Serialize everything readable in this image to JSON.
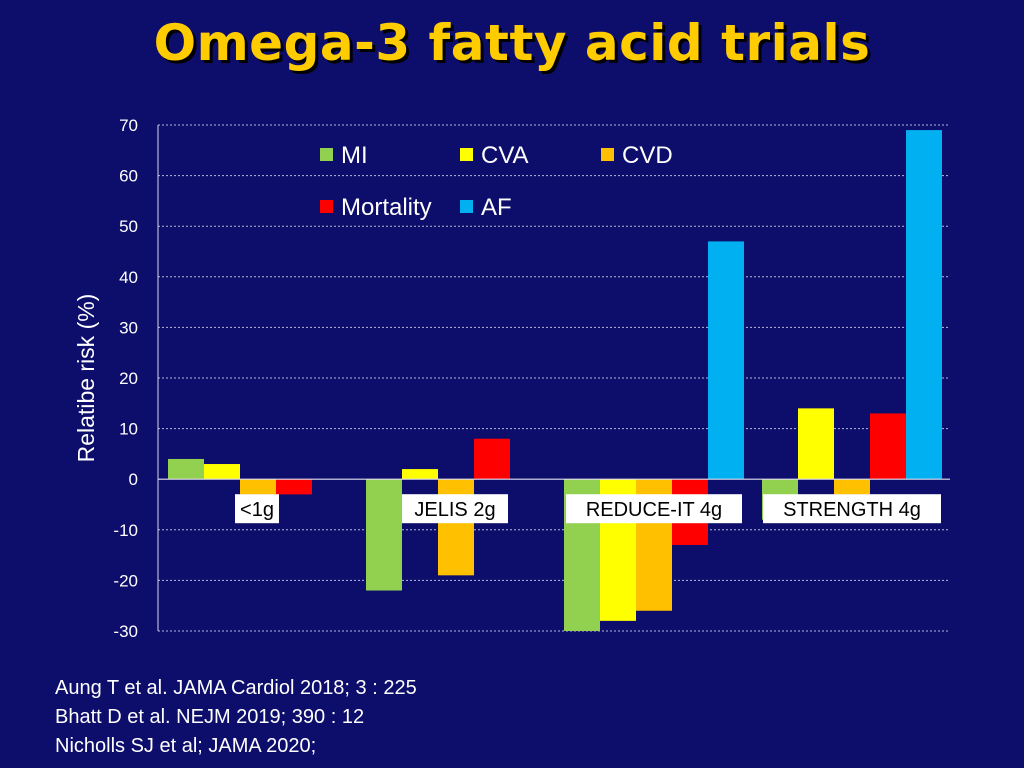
{
  "title": "Omega-3 fatty acid trials",
  "colors": {
    "background": "#0d0d6b",
    "title": "#ffcc00"
  },
  "chart_data": {
    "type": "bar",
    "ylabel": "Relatibe risk (%)",
    "xlabel": "",
    "ylim": [
      -30,
      70
    ],
    "yticks": [
      70,
      60,
      50,
      40,
      30,
      20,
      10,
      0,
      -10,
      -20,
      -30
    ],
    "grid": true,
    "legend_position": "top",
    "categories": [
      "<1g",
      "JELIS 2g",
      "REDUCE-IT 4g",
      "STRENGTH 4g"
    ],
    "series": [
      {
        "name": "MI",
        "color": "#92d050",
        "values": [
          4,
          -22,
          -30,
          -8
        ]
      },
      {
        "name": "CVA",
        "color": "#ffff00",
        "values": [
          3,
          2,
          -28,
          14
        ]
      },
      {
        "name": "CVD",
        "color": "#ffc000",
        "values": [
          -3,
          -19,
          -26,
          -3
        ]
      },
      {
        "name": "Mortality",
        "color": "#ff0000",
        "values": [
          -3,
          8,
          -13,
          13
        ]
      },
      {
        "name": "AF",
        "color": "#00b0f0",
        "values": [
          null,
          null,
          47,
          69
        ]
      }
    ]
  },
  "references": [
    "Aung T et al. JAMA Cardiol 2018; 3 : 225",
    "Bhatt D et al. NEJM 2019; 390 : 12",
    "Nicholls SJ et al; JAMA 2020;"
  ]
}
